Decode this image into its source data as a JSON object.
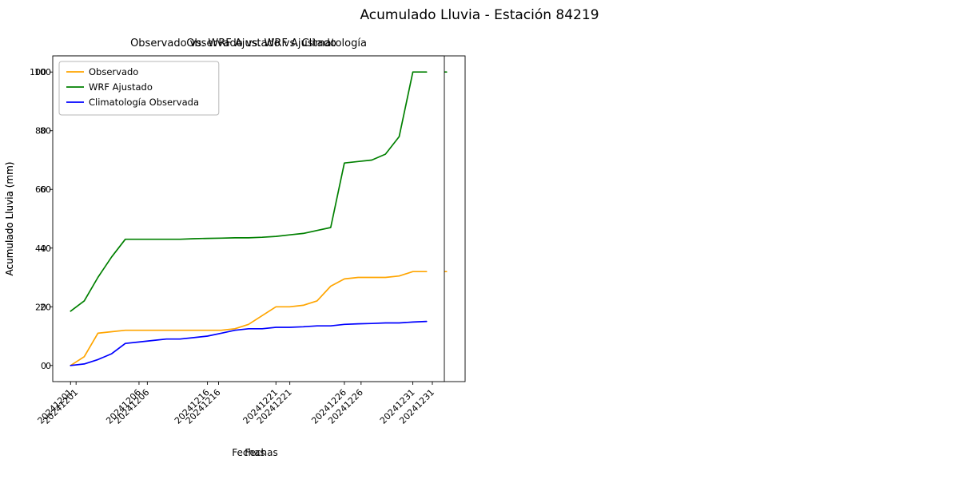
{
  "figure": {
    "title": "Acumulado Lluvia - Estación 84219"
  },
  "chart_data": [
    {
      "type": "line",
      "title": "Observado vs. WRF Ajustado",
      "xlabel": "Fechas",
      "ylabel": "Acumulado Lluvia (mm)",
      "ylim": [
        0,
        100
      ],
      "yticks": [
        0,
        20,
        40,
        60,
        80,
        100
      ],
      "xtick_positions": [
        0,
        5,
        10,
        15,
        20,
        25
      ],
      "xtick_labels": [
        "20241201",
        "20241206",
        "20241216",
        "20241221",
        "20241226",
        "20241231"
      ],
      "legend_position": "upper left",
      "grid": false,
      "series": [
        {
          "name": "Observado",
          "color": "#FFA500",
          "values": [
            0,
            3,
            11,
            11.5,
            12,
            12,
            12,
            12,
            12,
            12,
            12,
            12,
            12.5,
            14,
            17,
            20,
            20,
            20.5,
            22,
            27,
            29.5,
            30,
            30,
            30,
            30.5,
            32,
            32
          ]
        },
        {
          "name": "WRF Ajustado",
          "color": "#008000",
          "values": [
            18.5,
            22,
            30,
            37,
            43,
            43,
            43,
            43,
            43,
            43.2,
            43.3,
            43.4,
            43.5,
            43.5,
            43.7,
            44,
            44.5,
            45,
            46,
            47,
            69,
            69.5,
            70,
            72,
            78,
            100,
            100
          ]
        }
      ]
    },
    {
      "type": "line",
      "title": "Observado vs. WRF Ajustado vs. Climatología",
      "xlabel": "Fechas",
      "ylabel": "Acumulado Lluvia (mm)",
      "ylim": [
        0,
        100
      ],
      "yticks": [
        0,
        20,
        40,
        60,
        80,
        100
      ],
      "xtick_positions": [
        0,
        5,
        10,
        15,
        20,
        25
      ],
      "xtick_labels": [
        "20241201",
        "20241206",
        "20241216",
        "20241221",
        "20241226",
        "20241231"
      ],
      "legend_position": "upper left",
      "grid": false,
      "series": [
        {
          "name": "Observado",
          "color": "#FFA500",
          "values": [
            0,
            3,
            11,
            11.5,
            12,
            12,
            12,
            12,
            12,
            12,
            12,
            12,
            12.5,
            14,
            17,
            20,
            20,
            20.5,
            22,
            27,
            29.5,
            30,
            30,
            30,
            30.5,
            32,
            32
          ]
        },
        {
          "name": "WRF Ajustado",
          "color": "#008000",
          "values": [
            18.5,
            22,
            30,
            37,
            43,
            43,
            43,
            43,
            43,
            43.2,
            43.3,
            43.4,
            43.5,
            43.5,
            43.7,
            44,
            44.5,
            45,
            46,
            47,
            69,
            69.5,
            70,
            72,
            78,
            100,
            100
          ]
        },
        {
          "name": "Climatología Observada",
          "color": "#0000FF",
          "values": [
            0,
            0.5,
            2,
            4,
            7.5,
            8,
            8.5,
            9,
            9,
            9.5,
            10,
            11,
            12,
            12.5,
            12.5,
            13,
            13,
            13.2,
            13.5,
            13.5,
            14,
            14.2,
            14.3,
            14.5,
            14.5,
            14.8,
            15
          ]
        }
      ]
    }
  ]
}
